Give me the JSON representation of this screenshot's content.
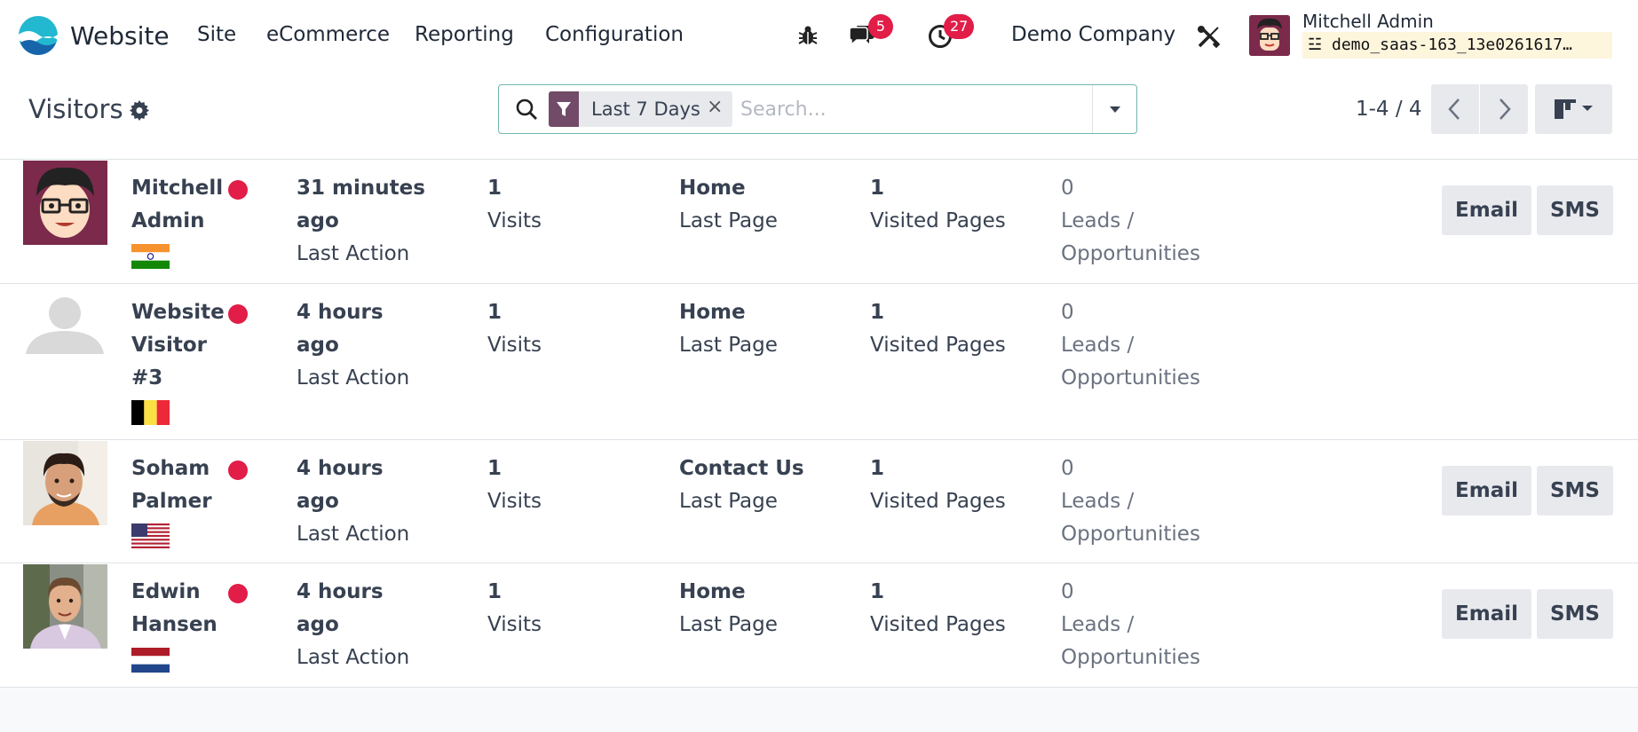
{
  "navbar": {
    "app_name": "Website",
    "menu": [
      "Site",
      "eCommerce",
      "Reporting",
      "Configuration"
    ],
    "messages_count": "5",
    "activities_count": "27",
    "company": "Demo Company",
    "user_name": "Mitchell Admin",
    "database": "demo_saas-163_13e0261617…"
  },
  "control_panel": {
    "title": "Visitors",
    "filter_facet": "Last 7 Days",
    "search_placeholder": "Search...",
    "pager": "1-4 / 4"
  },
  "visitors": [
    {
      "name": "Mitchell Admin",
      "country": "India",
      "last_action": "31 minutes ago",
      "last_action_label": "Last Action",
      "visits": "1",
      "visits_label": "Visits",
      "last_page": "Home",
      "last_page_label": "Last Page",
      "visited_pages": "1",
      "visited_pages_label": "Visited Pages",
      "leads": "0",
      "leads_label": "Leads / Opportunities",
      "email_label": "Email",
      "sms_label": "SMS",
      "has_actions": true
    },
    {
      "name": "Website Visitor #3",
      "country": "Belgium",
      "last_action": "4 hours ago",
      "last_action_label": "Last Action",
      "visits": "1",
      "visits_label": "Visits",
      "last_page": "Home",
      "last_page_label": "Last Page",
      "visited_pages": "1",
      "visited_pages_label": "Visited Pages",
      "leads": "0",
      "leads_label": "Leads / Opportunities",
      "has_actions": false
    },
    {
      "name": "Soham Palmer",
      "country": "United States",
      "last_action": "4 hours ago",
      "last_action_label": "Last Action",
      "visits": "1",
      "visits_label": "Visits",
      "last_page": "Contact Us",
      "last_page_label": "Last Page",
      "visited_pages": "1",
      "visited_pages_label": "Visited Pages",
      "leads": "0",
      "leads_label": "Leads / Opportunities",
      "email_label": "Email",
      "sms_label": "SMS",
      "has_actions": true
    },
    {
      "name": "Edwin Hansen",
      "country": "Netherlands",
      "last_action": "4 hours ago",
      "last_action_label": "Last Action",
      "visits": "1",
      "visits_label": "Visits",
      "last_page": "Home",
      "last_page_label": "Last Page",
      "visited_pages": "1",
      "visited_pages_label": "Visited Pages",
      "leads": "0",
      "leads_label": "Leads / Opportunities",
      "email_label": "Email",
      "sms_label": "SMS",
      "has_actions": true
    }
  ],
  "colors": {
    "brand": "#714b67",
    "badge": "#e11d48",
    "online": "#e11d48",
    "button_bg": "#e7e9ed"
  }
}
